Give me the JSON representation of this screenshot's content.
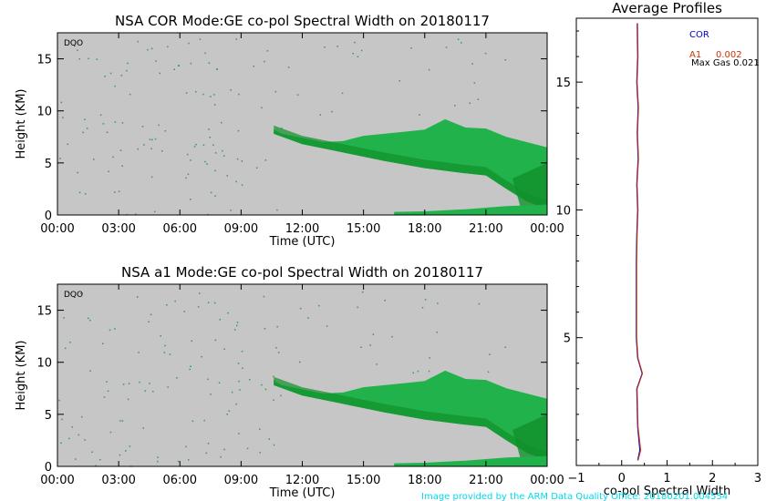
{
  "chart_data": [
    {
      "type": "heatmap",
      "title": "NSA COR  Mode:GE  co-pol Spectral Width  on 20180117",
      "panel_label": "DQO",
      "xlabel": "Time (UTC)",
      "ylabel": "Height (KM)",
      "x_ticks": [
        "00:00",
        "03:00",
        "06:00",
        "09:00",
        "12:00",
        "15:00",
        "18:00",
        "21:00",
        "00:00"
      ],
      "y_ticks": [
        "0",
        "5",
        "10",
        "15"
      ],
      "xlim": [
        0,
        24
      ],
      "ylim": [
        0,
        17.5
      ],
      "cloud_top_km": [
        [
          10.6,
          8.2
        ],
        [
          11,
          7.8
        ],
        [
          12,
          7.4
        ],
        [
          13,
          7.0
        ],
        [
          14,
          7.1
        ],
        [
          15,
          7.6
        ],
        [
          16,
          7.8
        ],
        [
          17,
          8.0
        ],
        [
          18,
          8.2
        ],
        [
          19,
          9.2
        ],
        [
          20,
          8.4
        ],
        [
          21,
          8.3
        ],
        [
          22,
          7.5
        ],
        [
          23,
          7.0
        ],
        [
          24,
          6.5
        ]
      ],
      "cloud_base_km": [
        [
          10.6,
          7.8
        ],
        [
          12,
          6.8
        ],
        [
          14,
          6.0
        ],
        [
          16,
          5.2
        ],
        [
          18,
          4.5
        ],
        [
          20,
          4.0
        ],
        [
          21,
          3.8
        ],
        [
          22,
          2.5
        ],
        [
          23,
          1.3
        ],
        [
          24,
          0.6
        ]
      ],
      "low_cloud_km": [
        [
          16.5,
          0.3
        ],
        [
          18,
          0.35
        ],
        [
          20,
          0.55
        ],
        [
          22,
          0.85
        ],
        [
          24,
          1.0
        ]
      ]
    },
    {
      "type": "heatmap",
      "title": "NSA a1   Mode:GE   co-pol Spectral Width   on 20180117",
      "panel_label": "DQO",
      "xlabel": "Time (UTC)",
      "ylabel": "Height (KM)",
      "x_ticks": [
        "00:00",
        "03:00",
        "06:00",
        "09:00",
        "12:00",
        "15:00",
        "18:00",
        "21:00",
        "00:00"
      ],
      "y_ticks": [
        "0",
        "5",
        "10",
        "15"
      ],
      "xlim": [
        0,
        24
      ],
      "ylim": [
        0,
        17.5
      ],
      "cloud_top_km": [
        [
          10.6,
          8.2
        ],
        [
          11,
          7.8
        ],
        [
          12,
          7.4
        ],
        [
          13,
          7.0
        ],
        [
          14,
          7.1
        ],
        [
          15,
          7.6
        ],
        [
          16,
          7.8
        ],
        [
          17,
          8.0
        ],
        [
          18,
          8.2
        ],
        [
          19,
          9.2
        ],
        [
          20,
          8.4
        ],
        [
          21,
          8.3
        ],
        [
          22,
          7.5
        ],
        [
          23,
          7.0
        ],
        [
          24,
          6.5
        ]
      ],
      "cloud_base_km": [
        [
          10.6,
          7.8
        ],
        [
          12,
          6.8
        ],
        [
          14,
          6.0
        ],
        [
          16,
          5.2
        ],
        [
          18,
          4.5
        ],
        [
          20,
          4.0
        ],
        [
          21,
          3.8
        ],
        [
          22,
          2.5
        ],
        [
          23,
          1.3
        ],
        [
          24,
          0.6
        ]
      ],
      "low_cloud_km": [
        [
          16.5,
          0.3
        ],
        [
          18,
          0.35
        ],
        [
          20,
          0.55
        ],
        [
          22,
          0.85
        ],
        [
          24,
          1.0
        ]
      ]
    },
    {
      "type": "line",
      "title": "Average Profiles",
      "xlabel": "co-pol Spectral Width",
      "xlim": [
        -1,
        3
      ],
      "ylim": [
        0,
        17.5
      ],
      "x_ticks": [
        "−1",
        "0",
        "1",
        "2",
        "3"
      ],
      "y_ticks": [
        "5",
        "10",
        "15"
      ],
      "legend_position": "top-right",
      "legend": {
        "cor": "COR",
        "a1": "A1",
        "a1_value": "0.002",
        "max_gas": "Max Gas 0.021"
      },
      "series": [
        {
          "name": "COR",
          "color": "#0000cc",
          "points": [
            [
              0.35,
              0.2
            ],
            [
              0.4,
              0.6
            ],
            [
              0.35,
              1.5
            ],
            [
              0.33,
              3
            ],
            [
              0.45,
              3.6
            ],
            [
              0.35,
              4.2
            ],
            [
              0.32,
              5
            ],
            [
              0.32,
              8
            ],
            [
              0.33,
              9
            ],
            [
              0.35,
              10
            ],
            [
              0.33,
              11
            ],
            [
              0.36,
              12
            ],
            [
              0.34,
              13
            ],
            [
              0.36,
              14
            ],
            [
              0.33,
              15
            ],
            [
              0.35,
              16
            ],
            [
              0.34,
              17.3
            ]
          ]
        },
        {
          "name": "A1",
          "color": "#cc3300",
          "points": [
            [
              0.36,
              0.2
            ],
            [
              0.42,
              0.6
            ],
            [
              0.36,
              1.5
            ],
            [
              0.34,
              3
            ],
            [
              0.46,
              3.6
            ],
            [
              0.36,
              4.2
            ],
            [
              0.33,
              5
            ],
            [
              0.33,
              8
            ],
            [
              0.34,
              9
            ],
            [
              0.36,
              10
            ],
            [
              0.34,
              11
            ],
            [
              0.37,
              12
            ],
            [
              0.35,
              13
            ],
            [
              0.37,
              14
            ],
            [
              0.34,
              15
            ],
            [
              0.36,
              16
            ],
            [
              0.35,
              17.3
            ]
          ]
        }
      ]
    }
  ],
  "footer": "Image provided by the ARM Data Quality Office: 20180201.004554",
  "colors": {
    "background": "#c6c6c6",
    "cloud": "#22b24c",
    "cloud_dark": "#11902a",
    "speck": "#3a9a5a",
    "footer": "#00d8e8"
  }
}
